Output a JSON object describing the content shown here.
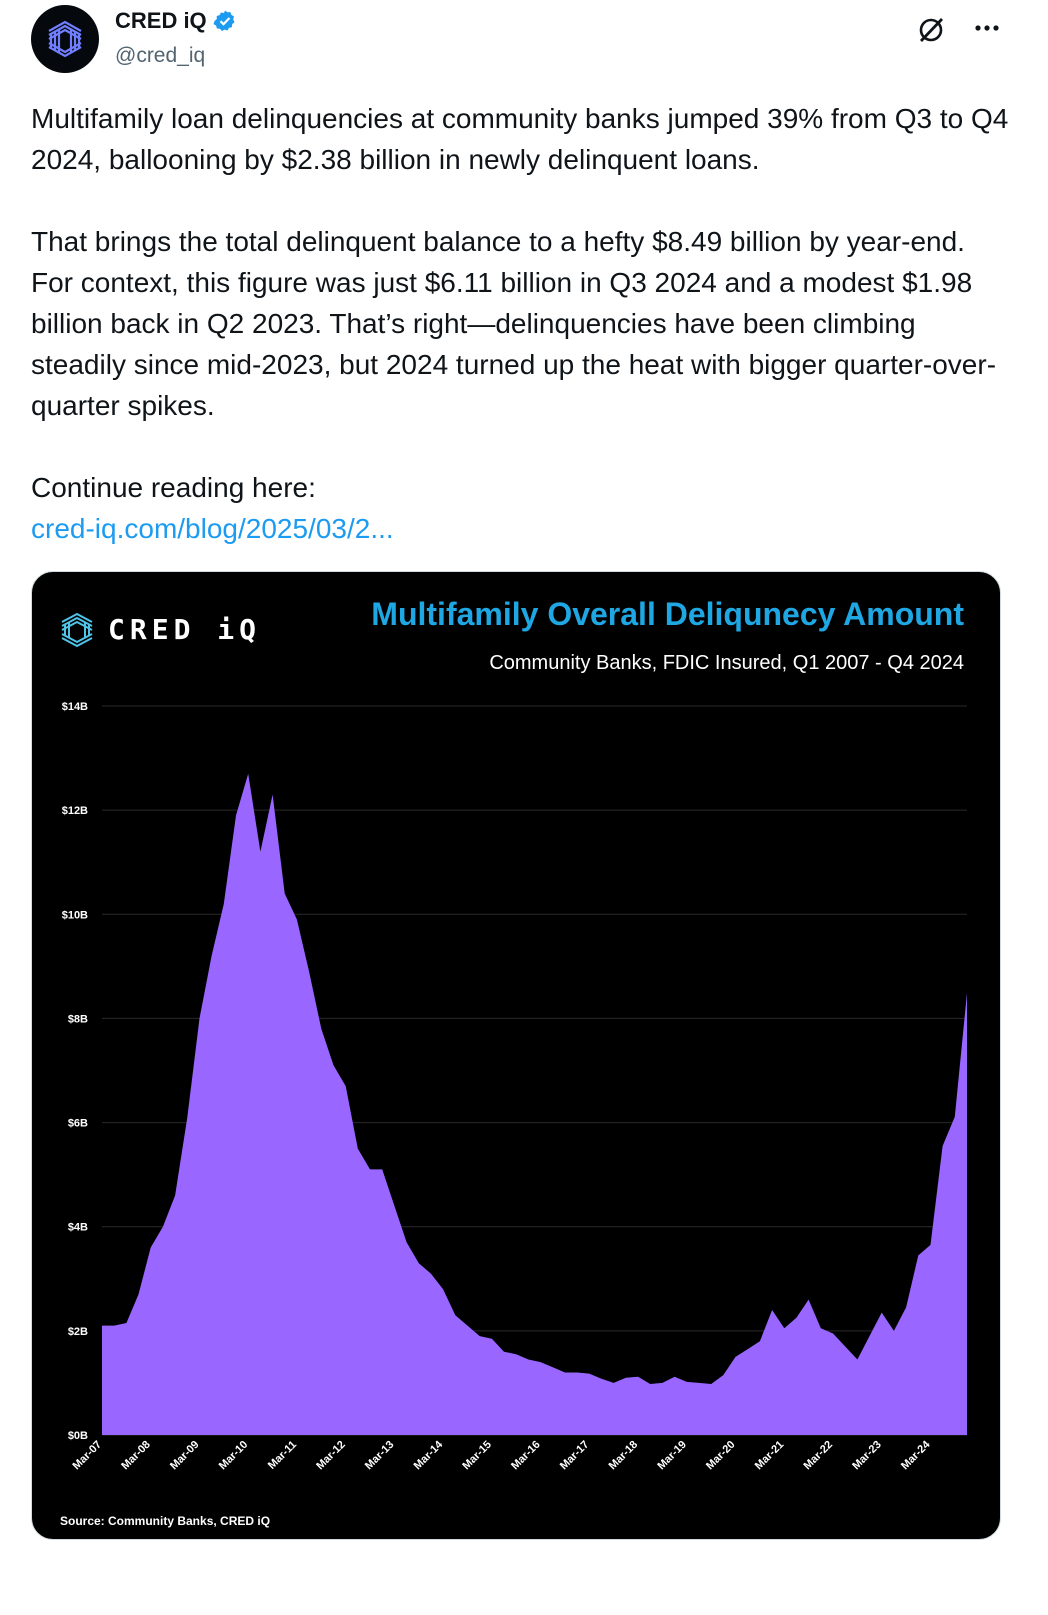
{
  "account": {
    "display_name": "CRED iQ",
    "handle": "@cred_iq",
    "avatar_icon": "cred-iq-logo-icon",
    "verified_icon": "verified-badge-icon",
    "verified_color": "#1d9bf0"
  },
  "actions": {
    "grok_icon": "grok-icon",
    "more_icon": "more-options-icon"
  },
  "tweet": {
    "paragraph_1": "Multifamily loan delinquencies at community banks jumped 39% from Q3 to Q4 2024, ballooning by $2.38 billion in newly delinquent loans.",
    "paragraph_2": "That brings the total delinquent balance to a hefty $8.49 billion by year-end. For context, this figure was just $6.11 billion in Q3 2024 and a modest $1.98 billion back in Q2 2023. That’s right—delinquencies have been climbing steadily since mid-2023, but 2024 turned up the heat with bigger quarter-over-quarter spikes.",
    "paragraph_3": "Continue reading here:",
    "link_text": "cred-iq.com/blog/2025/03/2..."
  },
  "media": {
    "logo_text": "CRED iQ",
    "source_text": "Source: Community Banks, CRED iQ"
  },
  "chart_data": {
    "type": "area",
    "title": "Multifamily Overall Deliqunecy Amount",
    "subtitle": "Community Banks, FDIC Insured, Q1 2007 - Q4 2024",
    "xlabel": "",
    "ylabel": "",
    "ylim": [
      0,
      14
    ],
    "y_ticks": [
      "$0B",
      "$2B",
      "$4B",
      "$6B",
      "$8B",
      "$10B",
      "$12B",
      "$14B"
    ],
    "x_ticks": [
      "Mar-07",
      "Mar-08",
      "Mar-09",
      "Mar-10",
      "Mar-11",
      "Mar-12",
      "Mar-13",
      "Mar-14",
      "Mar-15",
      "Mar-16",
      "Mar-17",
      "Mar-18",
      "Mar-19",
      "Mar-20",
      "Mar-21",
      "Mar-22",
      "Mar-23",
      "Mar-24"
    ],
    "grid": true,
    "fill_color": "#9966ff",
    "series": [
      {
        "values": [
          2.1,
          2.1,
          2.15,
          2.7,
          3.6,
          4.0,
          4.6,
          6.1,
          8.0,
          9.2,
          10.2,
          11.9,
          12.7,
          11.2,
          12.3,
          10.4,
          9.9,
          8.9,
          7.8,
          7.1,
          6.7,
          5.5,
          5.1,
          5.1,
          4.4,
          3.7,
          3.3,
          3.1,
          2.8,
          2.3,
          2.1,
          1.9,
          1.85,
          1.6,
          1.55,
          1.45,
          1.4,
          1.3,
          1.2,
          1.2,
          1.18,
          1.08,
          1.0,
          1.1,
          1.12,
          0.98,
          1.0,
          1.12,
          1.02,
          1.0,
          0.98,
          1.15,
          1.5,
          1.65,
          1.8,
          2.4,
          2.05,
          2.25,
          2.6,
          2.05,
          1.95,
          1.7,
          1.45,
          1.9,
          2.35,
          2.0,
          2.45,
          3.45,
          3.65,
          5.55,
          6.11,
          8.49
        ]
      }
    ]
  }
}
